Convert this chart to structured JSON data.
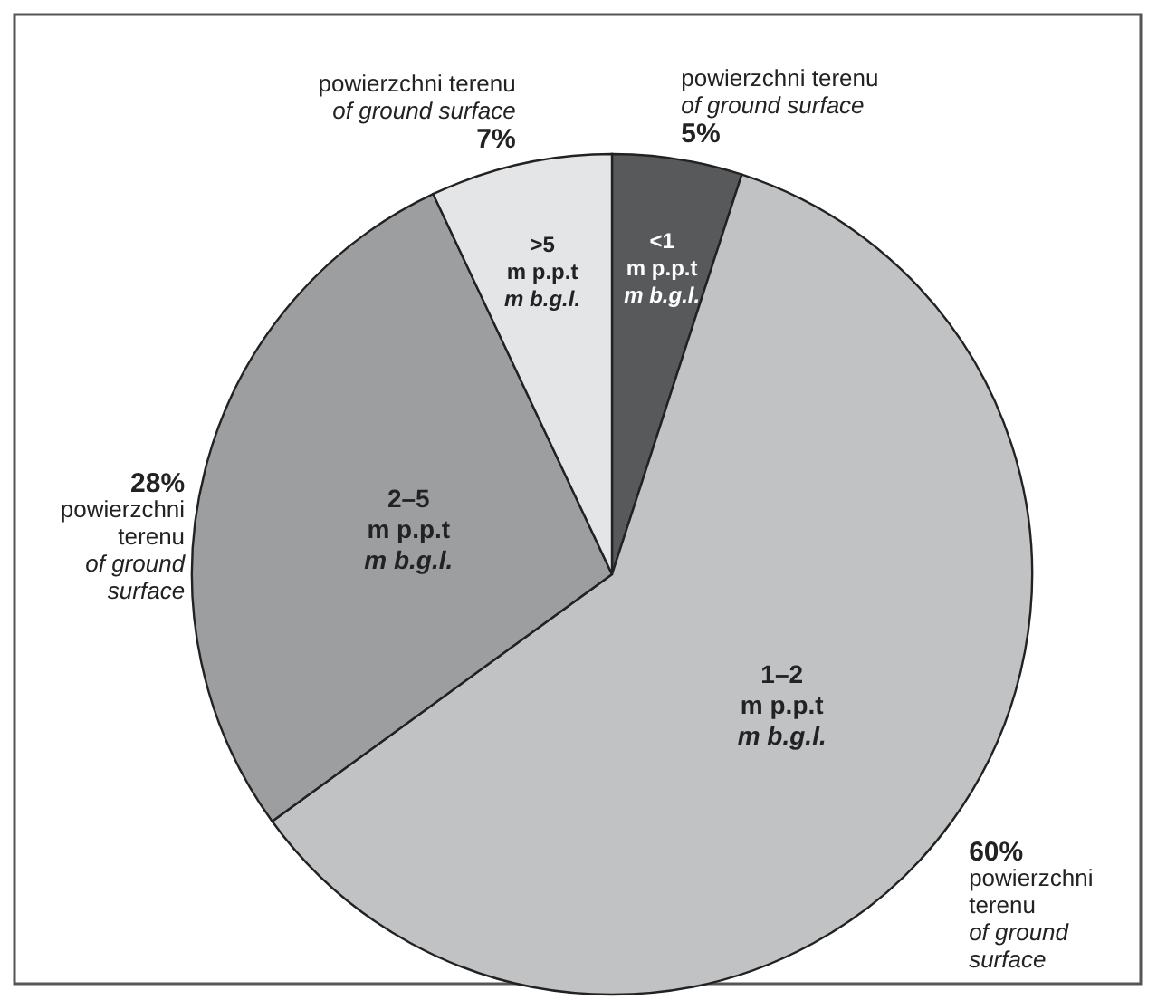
{
  "chart_data": {
    "type": "pie",
    "categories": [
      "<1\nm p.p.t\nm b.g.l.",
      "1–2\nm p.p.t\nm b.g.l.",
      "2–5\nm p.p.t\nm b.g.l.",
      ">5\nm p.p.t\nm b.g.l."
    ],
    "values": [
      5,
      60,
      28,
      7
    ],
    "colors": [
      "#58595b",
      "#c1c2c4",
      "#9d9ea0",
      "#e4e5e6"
    ],
    "value_labels": [
      "5%",
      "60%",
      "28%",
      "7%"
    ],
    "annotations": [
      "powierzchni terenu\nof ground surface",
      "powierzchni terenu\nof ground surface",
      "powierzchni terenu\nof ground surface",
      "powierzchni terenu\nof ground surface"
    ]
  }
}
